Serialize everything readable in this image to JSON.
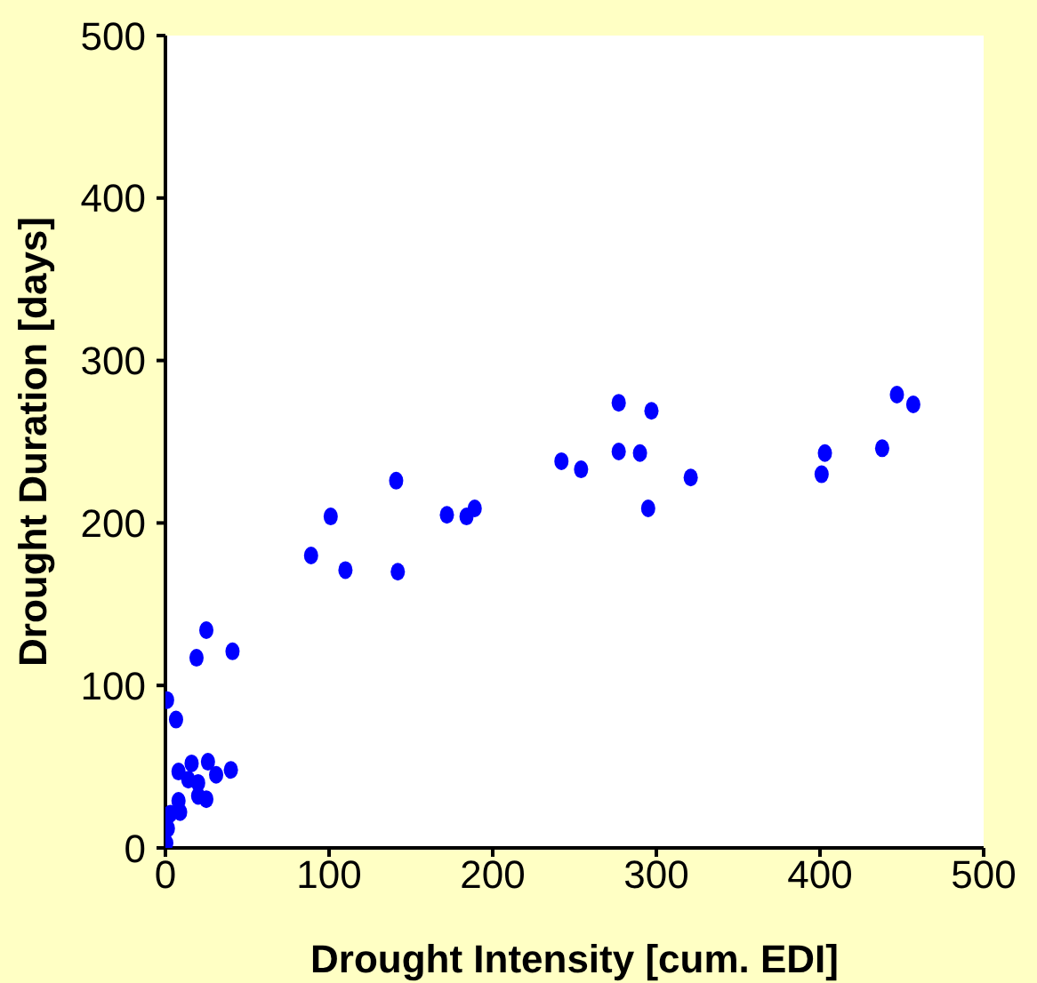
{
  "chart_data": {
    "type": "scatter",
    "xlabel": "Drought Intensity [cum. EDI]",
    "ylabel": "Drought Duration [days]",
    "xlim": [
      0,
      500
    ],
    "ylim": [
      0,
      500
    ],
    "xticks": [
      0,
      100,
      200,
      300,
      400,
      500
    ],
    "yticks": [
      0,
      100,
      200,
      300,
      400,
      500
    ],
    "grid": false,
    "marker": "circle",
    "series": [
      {
        "color": "#0000ff",
        "x": [
          25,
          19,
          41,
          1,
          6.5,
          16,
          26,
          8,
          14,
          20,
          31,
          40,
          20,
          25,
          8,
          9,
          3,
          1.5,
          0.5,
          89,
          101,
          110,
          141,
          142,
          172,
          184,
          189,
          242,
          254,
          277,
          277,
          290,
          297,
          295,
          321,
          401,
          403,
          438,
          447,
          457
        ],
        "values": [
          134,
          117,
          121,
          91,
          79,
          52,
          53,
          47,
          42,
          40,
          45,
          48,
          32,
          30,
          29,
          22,
          21,
          12,
          3,
          180,
          204,
          171,
          226,
          170,
          205,
          204,
          209,
          238,
          233,
          274,
          244,
          243,
          269,
          209,
          228,
          230,
          243,
          246,
          279,
          273
        ]
      }
    ]
  }
}
